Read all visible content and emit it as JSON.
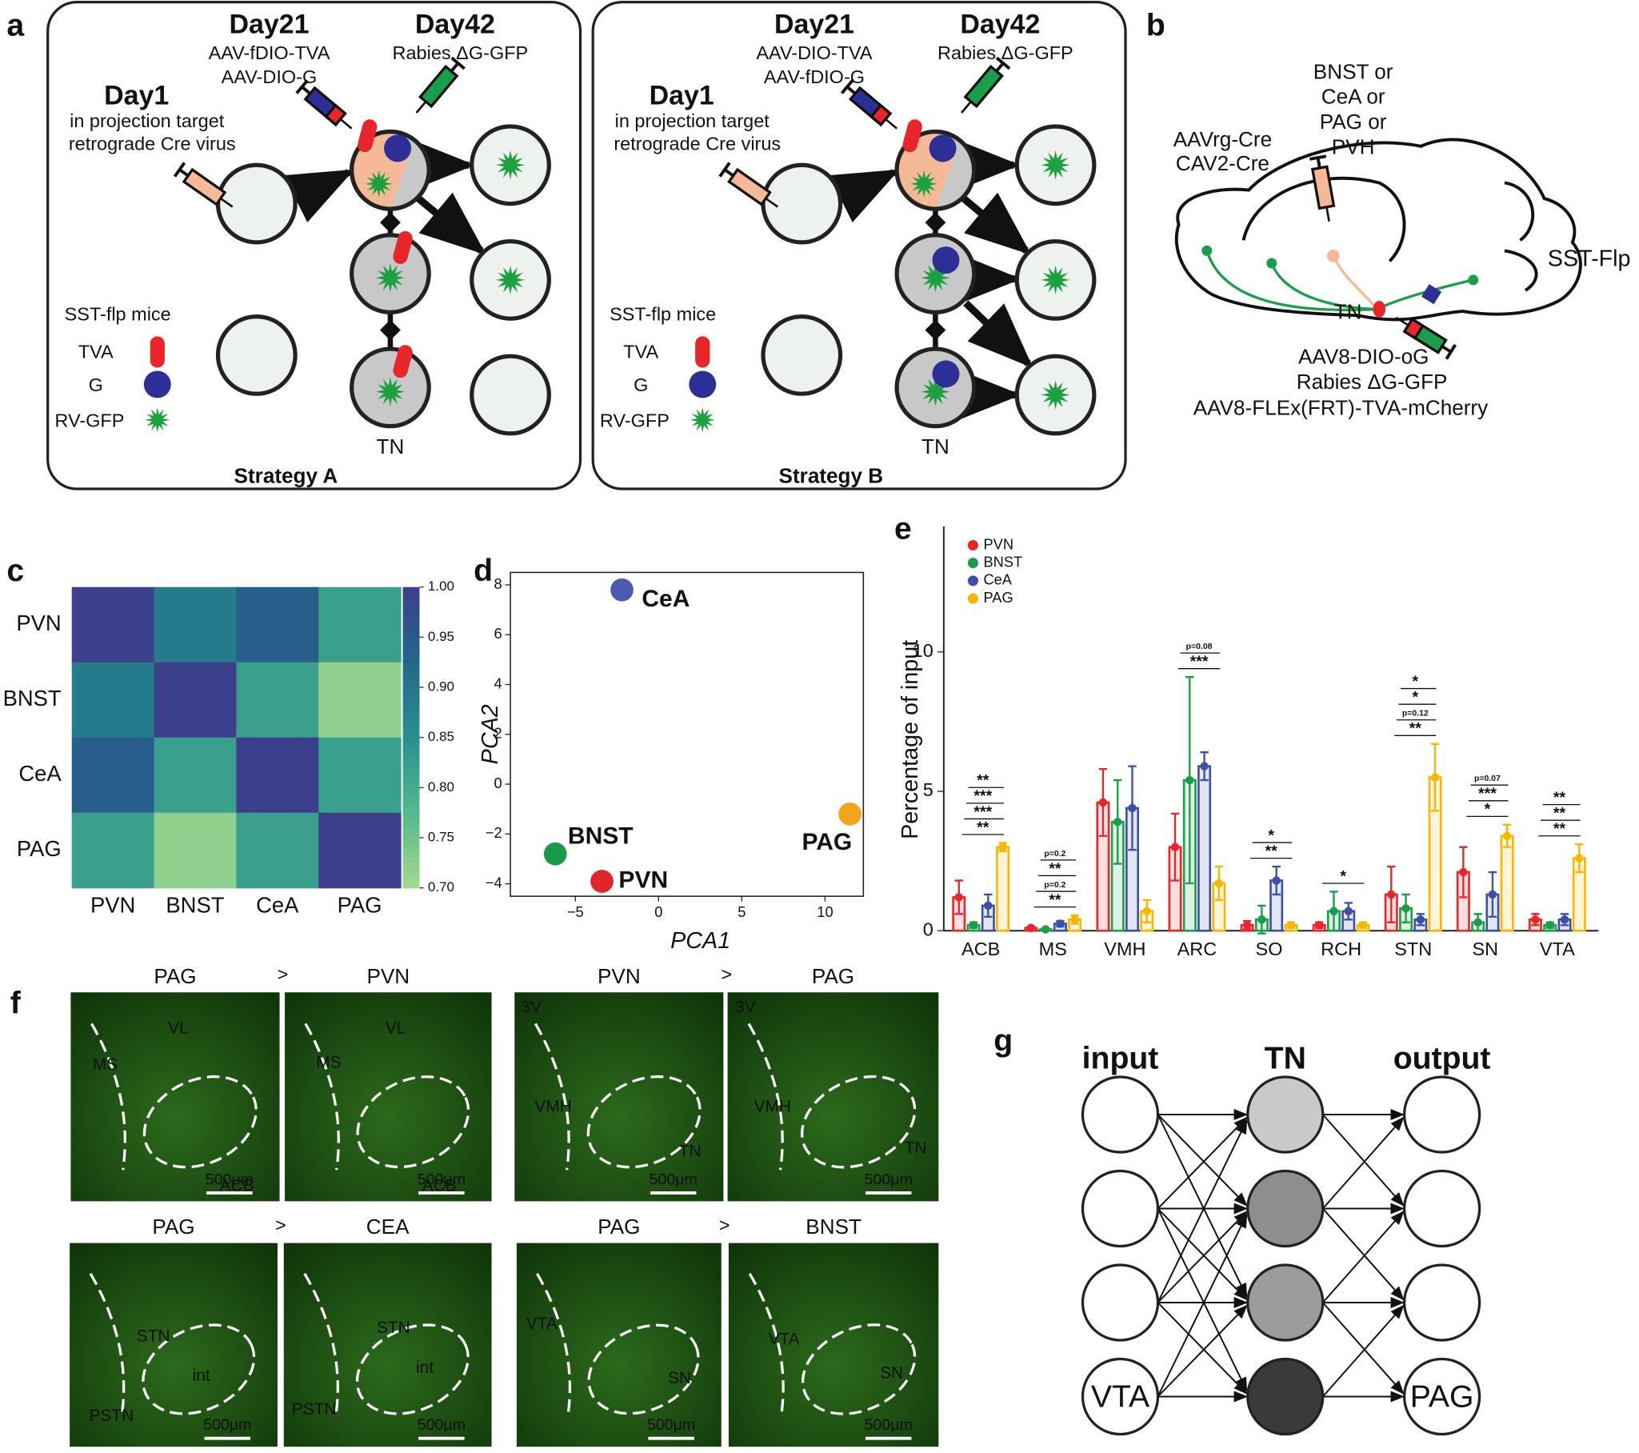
{
  "panel_a": {
    "panel": "a",
    "strategies": [
      {
        "day1": "Day1",
        "day1_note": [
          "in projection target",
          "retrograde Cre virus"
        ],
        "day21": "Day21",
        "day21_viruses": [
          "AAV-fDIO-TVA",
          "AAV-DIO-G"
        ],
        "day42": "Day42",
        "day42_virus": "Rabies ΔG-GFP",
        "mice": "SST-flp mice",
        "legend": [
          "TVA",
          "G",
          "RV-GFP"
        ],
        "target": "TN",
        "title": "Strategy A"
      },
      {
        "day1": "Day1",
        "day1_note": [
          "in projection target",
          "retrograde Cre virus"
        ],
        "day21": "Day21",
        "day21_viruses": [
          "AAV-DIO-TVA",
          "AAV-fDIO-G"
        ],
        "day42": "Day42",
        "day42_virus": "Rabies ΔG-GFP",
        "mice": "SST-flp mice",
        "legend": [
          "TVA",
          "G",
          "RV-GFP"
        ],
        "target": "TN",
        "title": "Strategy B"
      }
    ]
  },
  "panel_b": {
    "panel": "b",
    "targets": [
      "BNST or",
      "CeA or",
      "PAG or",
      "PVH"
    ],
    "retro": [
      "AAVrg-Cre",
      "CAV2-Cre"
    ],
    "mouse": "SST-Flp",
    "target": "TN",
    "viruses": [
      "AAV8-DIO-oG",
      "Rabies ΔG-GFP",
      "AAV8-FLEx(FRT)-TVA-mCherry"
    ]
  },
  "chart_data": [
    {
      "type": "heatmap",
      "panel": "c",
      "rows": [
        "PVN",
        "BNST",
        "CeA",
        "PAG"
      ],
      "columns": [
        "PVN",
        "BNST",
        "CeA",
        "PAG"
      ],
      "values": [
        [
          1.0,
          0.89,
          0.94,
          0.82
        ],
        [
          0.89,
          1.0,
          0.82,
          0.72
        ],
        [
          0.94,
          0.82,
          1.0,
          0.82
        ],
        [
          0.82,
          0.72,
          0.82,
          1.0
        ]
      ],
      "zlim": [
        0.7,
        1.0
      ],
      "zticks": [
        {
          "value": 1.0,
          "label": "1.00"
        },
        0.95,
        {
          "value": 0.9,
          "label": "0.90"
        },
        0.85,
        {
          "value": 0.8,
          "label": "0.80"
        },
        0.75,
        {
          "value": 0.7,
          "label": "0.70"
        }
      ],
      "colorscale": [
        "#a6d98e",
        "#54b88e",
        "#2a8f8d",
        "#21688a",
        "#3b3f8c"
      ]
    },
    {
      "type": "scatter",
      "panel": "d",
      "x_label": "PCA1",
      "y_label": "PCA2",
      "xlim": [
        -8.9,
        12.3
      ],
      "ylim": [
        -4.5,
        8.5
      ],
      "xticks": [
        {
          "value": -5,
          "label": "−5"
        },
        0,
        5,
        10
      ],
      "yticks": [
        {
          "value": -4,
          "label": "−4"
        },
        {
          "value": -2,
          "label": "−2"
        },
        0,
        2,
        4,
        6,
        8
      ],
      "series": [
        {
          "name": "CeA",
          "color": "#4a5bb0",
          "x": [
            -2.2
          ],
          "values": [
            7.8
          ]
        },
        {
          "name": "BNST",
          "color": "#1a9a48",
          "x": [
            -6.2
          ],
          "values": [
            -2.8
          ]
        },
        {
          "name": "PVN",
          "color": "#e0262a",
          "x": [
            -3.4
          ],
          "values": [
            -3.9
          ]
        },
        {
          "name": "PAG",
          "color": "#f2a51c",
          "x": [
            11.5
          ],
          "values": [
            -1.2
          ]
        }
      ]
    },
    {
      "type": "bar",
      "panel": "e",
      "y_label": "Percentage of input",
      "categories": [
        "ACB",
        "MS",
        "VMH",
        "ARC",
        "SO",
        "RCH",
        "STN",
        "SN",
        "VTA"
      ],
      "ylim": [
        0,
        14.5
      ],
      "yticks": [
        0,
        5,
        10
      ],
      "series": [
        {
          "name": "PVN",
          "color": "#e8262a",
          "values": [
            1.2,
            0.1,
            4.6,
            3.0,
            0.2,
            0.2,
            1.3,
            2.1,
            0.4
          ],
          "errors": [
            0.6,
            0.05,
            1.2,
            1.2,
            0.15,
            0.1,
            1.0,
            0.9,
            0.2
          ]
        },
        {
          "name": "BNST",
          "color": "#1a9e4a",
          "values": [
            0.2,
            0.05,
            3.9,
            5.4,
            0.4,
            0.7,
            0.8,
            0.3,
            0.2
          ],
          "errors": [
            0.1,
            0.03,
            1.5,
            3.7,
            0.5,
            0.7,
            0.5,
            0.3,
            0.1
          ]
        },
        {
          "name": "CeA",
          "color": "#3b50a8",
          "values": [
            0.9,
            0.25,
            4.4,
            5.9,
            1.8,
            0.7,
            0.4,
            1.3,
            0.4
          ],
          "errors": [
            0.4,
            0.1,
            1.5,
            0.5,
            0.5,
            0.3,
            0.2,
            0.8,
            0.2
          ]
        },
        {
          "name": "PAG",
          "color": "#f5b800",
          "values": [
            3.0,
            0.4,
            0.7,
            1.7,
            0.2,
            0.2,
            5.5,
            3.4,
            2.6
          ],
          "errors": [
            0.15,
            0.15,
            0.4,
            0.6,
            0.1,
            0.1,
            1.2,
            0.4,
            0.5
          ]
        }
      ],
      "annotations": [
        [
          {
            "text": "**"
          },
          {
            "text": "***"
          },
          {
            "text": "***",
            "color": "#e8262a"
          },
          {
            "text": "**"
          }
        ],
        [
          {
            "text": "**"
          },
          {
            "text": "p=0.2",
            "color": "#e8262a"
          },
          {
            "text": "**"
          },
          {
            "text": "p=0.2",
            "color": "#e8262a"
          }
        ],
        [],
        [
          {
            "text": "***"
          },
          {
            "text": "p=0.08",
            "color": "#e8262a"
          }
        ],
        [
          {
            "text": "**"
          },
          {
            "text": "*"
          }
        ],
        [
          {
            "text": "*"
          }
        ],
        [
          {
            "text": "**"
          },
          {
            "text": "p=0.12",
            "color": "#e8262a"
          },
          {
            "text": "*"
          },
          {
            "text": "*"
          }
        ],
        [
          {
            "text": "*"
          },
          {
            "text": "***"
          },
          {
            "text": "p=0.07",
            "color": "#e8262a"
          }
        ],
        [
          {
            "text": "**"
          },
          {
            "text": "**"
          },
          {
            "text": "**"
          }
        ]
      ]
    }
  ],
  "panel_f": {
    "panel": "f",
    "comparator": ">",
    "pairs": [
      {
        "images": [
          {
            "title": "PAG",
            "labels": [
              "VL",
              "MS",
              "ACB"
            ],
            "scale": "500μm"
          },
          {
            "title": "PVN",
            "labels": [
              "VL",
              "MS",
              "ACB"
            ],
            "scale": "500μm"
          }
        ]
      },
      {
        "images": [
          {
            "title": "PVN",
            "labels": [
              "3V",
              "VMH",
              "TN"
            ],
            "scale": "500μm"
          },
          {
            "title": "PAG",
            "labels": [
              "3V",
              "VMH",
              "TN"
            ],
            "scale": "500μm"
          }
        ]
      },
      {
        "images": [
          {
            "title": "PAG",
            "labels": [
              "STN",
              "int",
              "PSTN"
            ],
            "scale": "500μm"
          },
          {
            "title": "CEA",
            "labels": [
              "STN",
              "int",
              "PSTN"
            ],
            "scale": "500μm"
          }
        ]
      },
      {
        "images": [
          {
            "title": "PAG",
            "labels": [
              "VTA",
              "SN"
            ],
            "scale": "500μm"
          },
          {
            "title": "BNST",
            "labels": [
              "VTA",
              "SN"
            ],
            "scale": "500μm"
          }
        ]
      }
    ]
  },
  "panel_g": {
    "panel": "g",
    "columns": [
      "input",
      "TN",
      "output"
    ],
    "input_label": "VTA",
    "output_label": "PAG"
  }
}
